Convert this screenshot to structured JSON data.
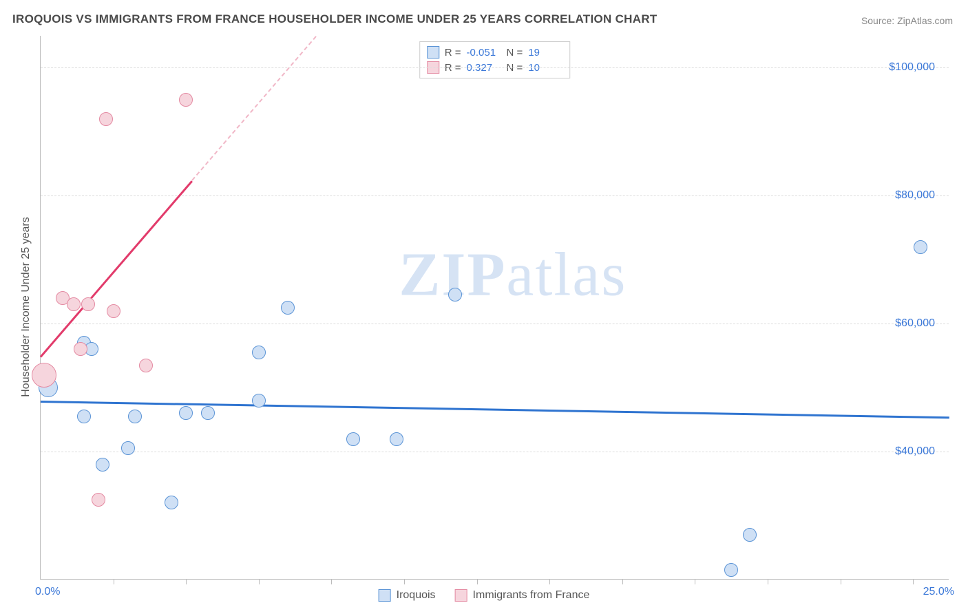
{
  "title": "IROQUOIS VS IMMIGRANTS FROM FRANCE HOUSEHOLDER INCOME UNDER 25 YEARS CORRELATION CHART",
  "source_label": "Source:",
  "source_value": "ZipAtlas.com",
  "y_axis_label": "Householder Income Under 25 years",
  "watermark_zip": "ZIP",
  "watermark_atlas": "atlas",
  "chart": {
    "type": "scatter",
    "x_min": 0.0,
    "x_max": 25.0,
    "x_min_label": "0.0%",
    "x_max_label": "25.0%",
    "y_min": 20000,
    "y_max": 105000,
    "y_gridlines": [
      40000,
      60000,
      80000,
      100000
    ],
    "y_tick_labels": [
      "$40,000",
      "$60,000",
      "$80,000",
      "$100,000"
    ],
    "x_ticks": [
      2,
      4,
      6,
      8,
      10,
      12,
      14,
      16,
      18,
      20,
      22,
      24
    ],
    "background_color": "#ffffff",
    "grid_color": "#dddddd",
    "axis_color": "#bbbbbb",
    "tick_label_color": "#3b78d8",
    "point_radius": 10,
    "series": [
      {
        "name": "Iroquois",
        "fill": "#cfe0f5",
        "stroke": "#5b94d6",
        "trend_color": "#2f74d0",
        "trend_dash_color": "#b7cef0",
        "R": "-0.051",
        "N": "19",
        "trend_y_at_xmin": 48000,
        "trend_y_at_xmax": 45500,
        "points": [
          {
            "x": 0.2,
            "y": 50000,
            "r": 14
          },
          {
            "x": 1.2,
            "y": 57000,
            "r": 10
          },
          {
            "x": 1.4,
            "y": 56000,
            "r": 10
          },
          {
            "x": 1.2,
            "y": 45500,
            "r": 10
          },
          {
            "x": 2.6,
            "y": 45500,
            "r": 10
          },
          {
            "x": 2.4,
            "y": 40500,
            "r": 10
          },
          {
            "x": 1.7,
            "y": 38000,
            "r": 10
          },
          {
            "x": 3.6,
            "y": 32000,
            "r": 10
          },
          {
            "x": 4.0,
            "y": 46000,
            "r": 10
          },
          {
            "x": 4.6,
            "y": 46000,
            "r": 10
          },
          {
            "x": 6.0,
            "y": 55500,
            "r": 10
          },
          {
            "x": 6.0,
            "y": 48000,
            "r": 10
          },
          {
            "x": 6.8,
            "y": 62500,
            "r": 10
          },
          {
            "x": 8.6,
            "y": 42000,
            "r": 10
          },
          {
            "x": 9.8,
            "y": 42000,
            "r": 10
          },
          {
            "x": 11.4,
            "y": 64500,
            "r": 10
          },
          {
            "x": 19.0,
            "y": 21500,
            "r": 10
          },
          {
            "x": 19.5,
            "y": 27000,
            "r": 10
          },
          {
            "x": 24.2,
            "y": 72000,
            "r": 10
          }
        ]
      },
      {
        "name": "Immigrants from France",
        "fill": "#f6d5dd",
        "stroke": "#e48aa2",
        "trend_color": "#e23b6b",
        "trend_dash_color": "#f1b7c7",
        "R": "0.327",
        "N": "10",
        "trend_y_at_xmin": 55000,
        "trend_y_at_xmax": 220000,
        "points": [
          {
            "x": 0.1,
            "y": 52000,
            "r": 18
          },
          {
            "x": 0.6,
            "y": 64000,
            "r": 10
          },
          {
            "x": 0.9,
            "y": 63000,
            "r": 10
          },
          {
            "x": 1.3,
            "y": 63000,
            "r": 10
          },
          {
            "x": 1.1,
            "y": 56000,
            "r": 10
          },
          {
            "x": 2.0,
            "y": 62000,
            "r": 10
          },
          {
            "x": 2.9,
            "y": 53500,
            "r": 10
          },
          {
            "x": 1.6,
            "y": 32500,
            "r": 10
          },
          {
            "x": 1.8,
            "y": 92000,
            "r": 10
          },
          {
            "x": 4.0,
            "y": 95000,
            "r": 10
          }
        ]
      }
    ]
  },
  "legend_bottom": {
    "items": [
      {
        "label": "Iroquois",
        "fill": "#cfe0f5",
        "stroke": "#5b94d6"
      },
      {
        "label": "Immigrants from France",
        "fill": "#f6d5dd",
        "stroke": "#e48aa2"
      }
    ]
  },
  "legend_top_labels": {
    "R": "R =",
    "N": "N ="
  }
}
